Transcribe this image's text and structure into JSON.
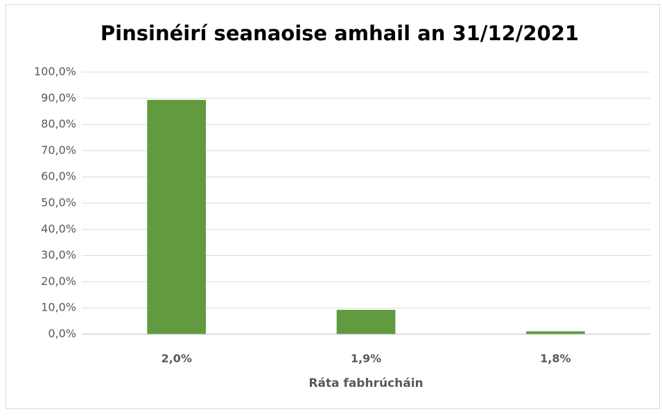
{
  "chart_data": {
    "type": "bar",
    "title": "Pinsinéirí seanaoise amhail an 31/12/2021",
    "x_label": "Ráta fabhrúcháin",
    "categories": [
      "2,0%",
      "1,9%",
      "1,8%"
    ],
    "values": [
      89.4,
      9.3,
      1.1
    ],
    "color": "#629b3f",
    "ylim": [
      0,
      100
    ],
    "yticks": [
      {
        "value": 0,
        "label": "0,0%"
      },
      {
        "value": 10,
        "label": "10,0%"
      },
      {
        "value": 20,
        "label": "20,0%"
      },
      {
        "value": 30,
        "label": "30,0%"
      },
      {
        "value": 40,
        "label": "40,0%"
      },
      {
        "value": 50,
        "label": "50,0%"
      },
      {
        "value": 60,
        "label": "60,0%"
      },
      {
        "value": 70,
        "label": "70,0%"
      },
      {
        "value": 80,
        "label": "80,0%"
      },
      {
        "value": 90,
        "label": "90,0%"
      },
      {
        "value": 100,
        "label": "100,0%"
      }
    ],
    "grid": true
  }
}
